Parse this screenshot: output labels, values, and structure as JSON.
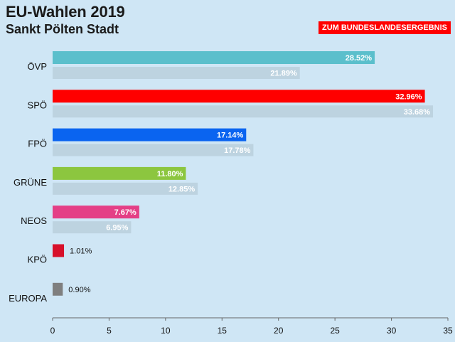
{
  "header": {
    "title": "EU-Wahlen 2019",
    "subtitle": "Sankt Pölten Stadt",
    "result_button": "ZUM BUNDESLANDESERGEBNIS"
  },
  "colors": {
    "background": "#cfe6f5",
    "previous": "#bdd3e0",
    "button": "#ff0000"
  },
  "chart_data": {
    "type": "bar",
    "orientation": "horizontal",
    "title": "EU-Wahlen 2019",
    "subtitle": "Sankt Pölten Stadt",
    "xlim": [
      0,
      35
    ],
    "xticks": [
      0,
      5,
      10,
      15,
      20,
      25,
      30,
      35
    ],
    "categories": [
      "ÖVP",
      "SPÖ",
      "FPÖ",
      "GRÜNE",
      "NEOS",
      "KPÖ",
      "EUROPA"
    ],
    "series": [
      {
        "name": "current",
        "values": [
          28.52,
          32.96,
          17.14,
          11.8,
          7.67,
          1.01,
          0.9
        ],
        "labels": [
          "28.52%",
          "32.96%",
          "17.14%",
          "11.80%",
          "7.67%",
          "1.01%",
          "0.90%"
        ],
        "colors": [
          "#5bbfcc",
          "#ff0000",
          "#0a64f0",
          "#8cc63f",
          "#e43f86",
          "#d7102a",
          "#7f7f7f"
        ]
      },
      {
        "name": "previous",
        "values": [
          21.89,
          33.68,
          17.78,
          12.85,
          6.95,
          null,
          null
        ],
        "labels": [
          "21.89%",
          "33.68%",
          "17.78%",
          "12.85%",
          "6.95%",
          null,
          null
        ]
      }
    ]
  }
}
